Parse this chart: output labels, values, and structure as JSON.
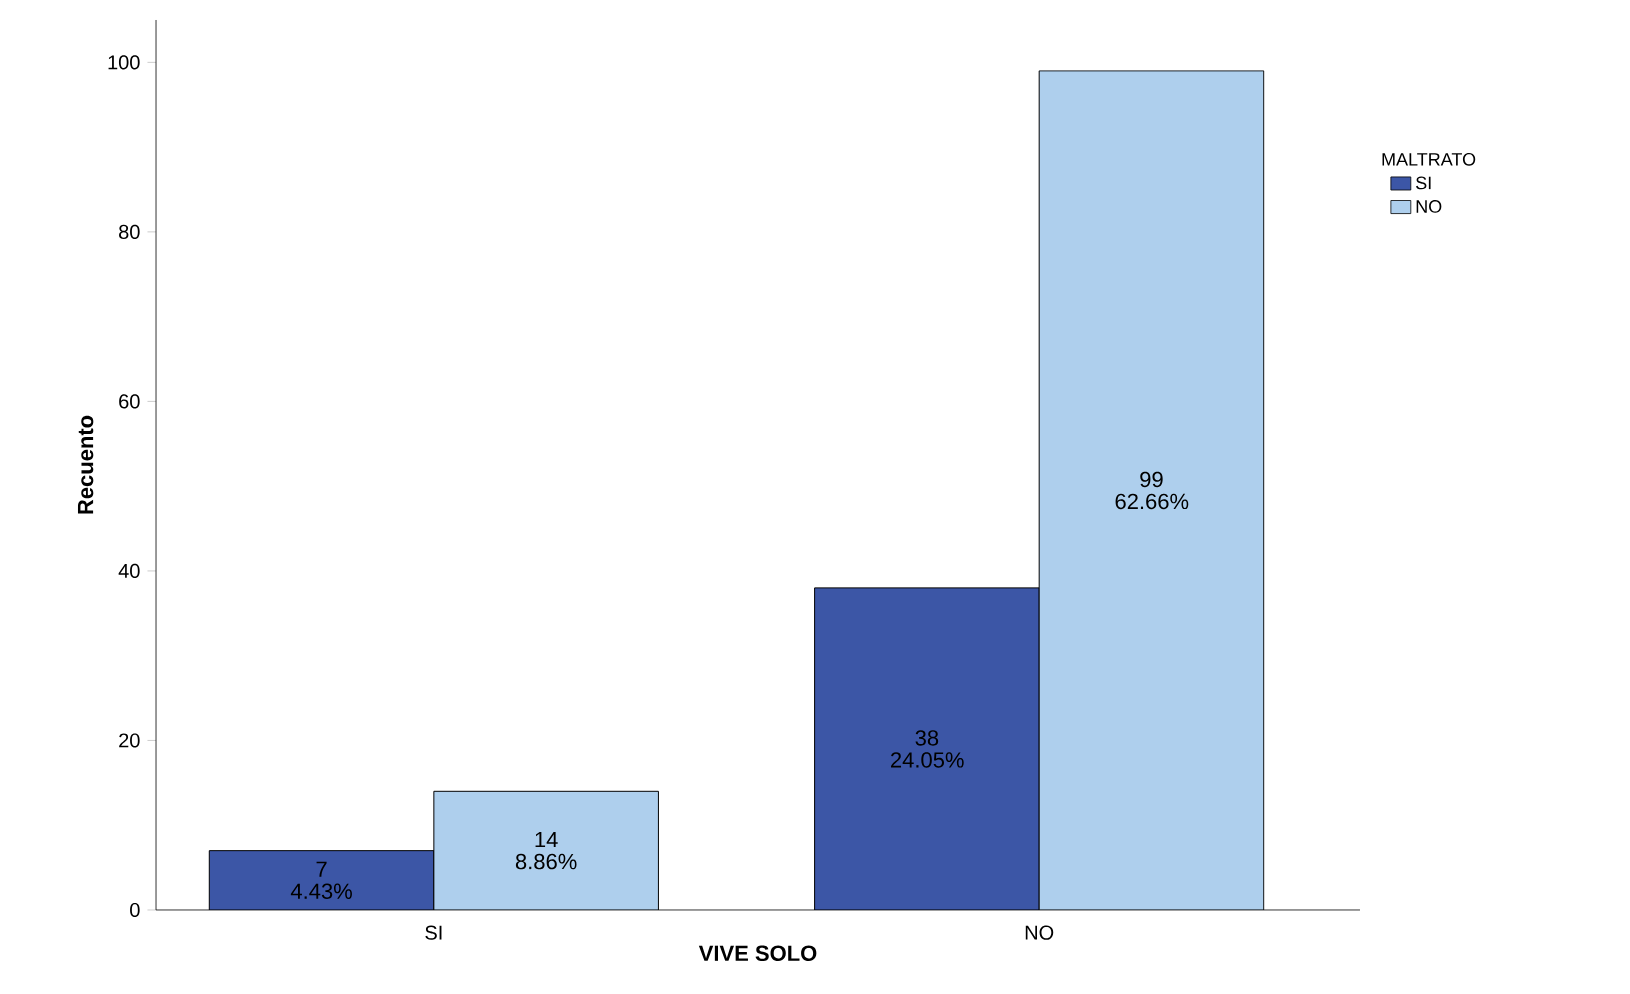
{
  "chart_data": {
    "type": "bar",
    "xlabel": "VIVE SOLO",
    "ylabel": "Recuento",
    "legend_title": "MALTRATO",
    "categories": [
      "SI",
      "NO"
    ],
    "series": [
      {
        "name": "SI",
        "color": "#3c56a6",
        "values": [
          7,
          38
        ],
        "value_labels": [
          "7 4.43%",
          "38 24.05%"
        ]
      },
      {
        "name": "NO",
        "color": "#aecfed",
        "values": [
          14,
          99
        ],
        "value_labels": [
          "14 8.86%",
          "99 62.66%"
        ]
      }
    ],
    "ylim": [
      0,
      105
    ],
    "yticks": [
      0,
      20,
      40,
      60,
      80,
      100
    ],
    "grid": false,
    "legend": "right"
  }
}
